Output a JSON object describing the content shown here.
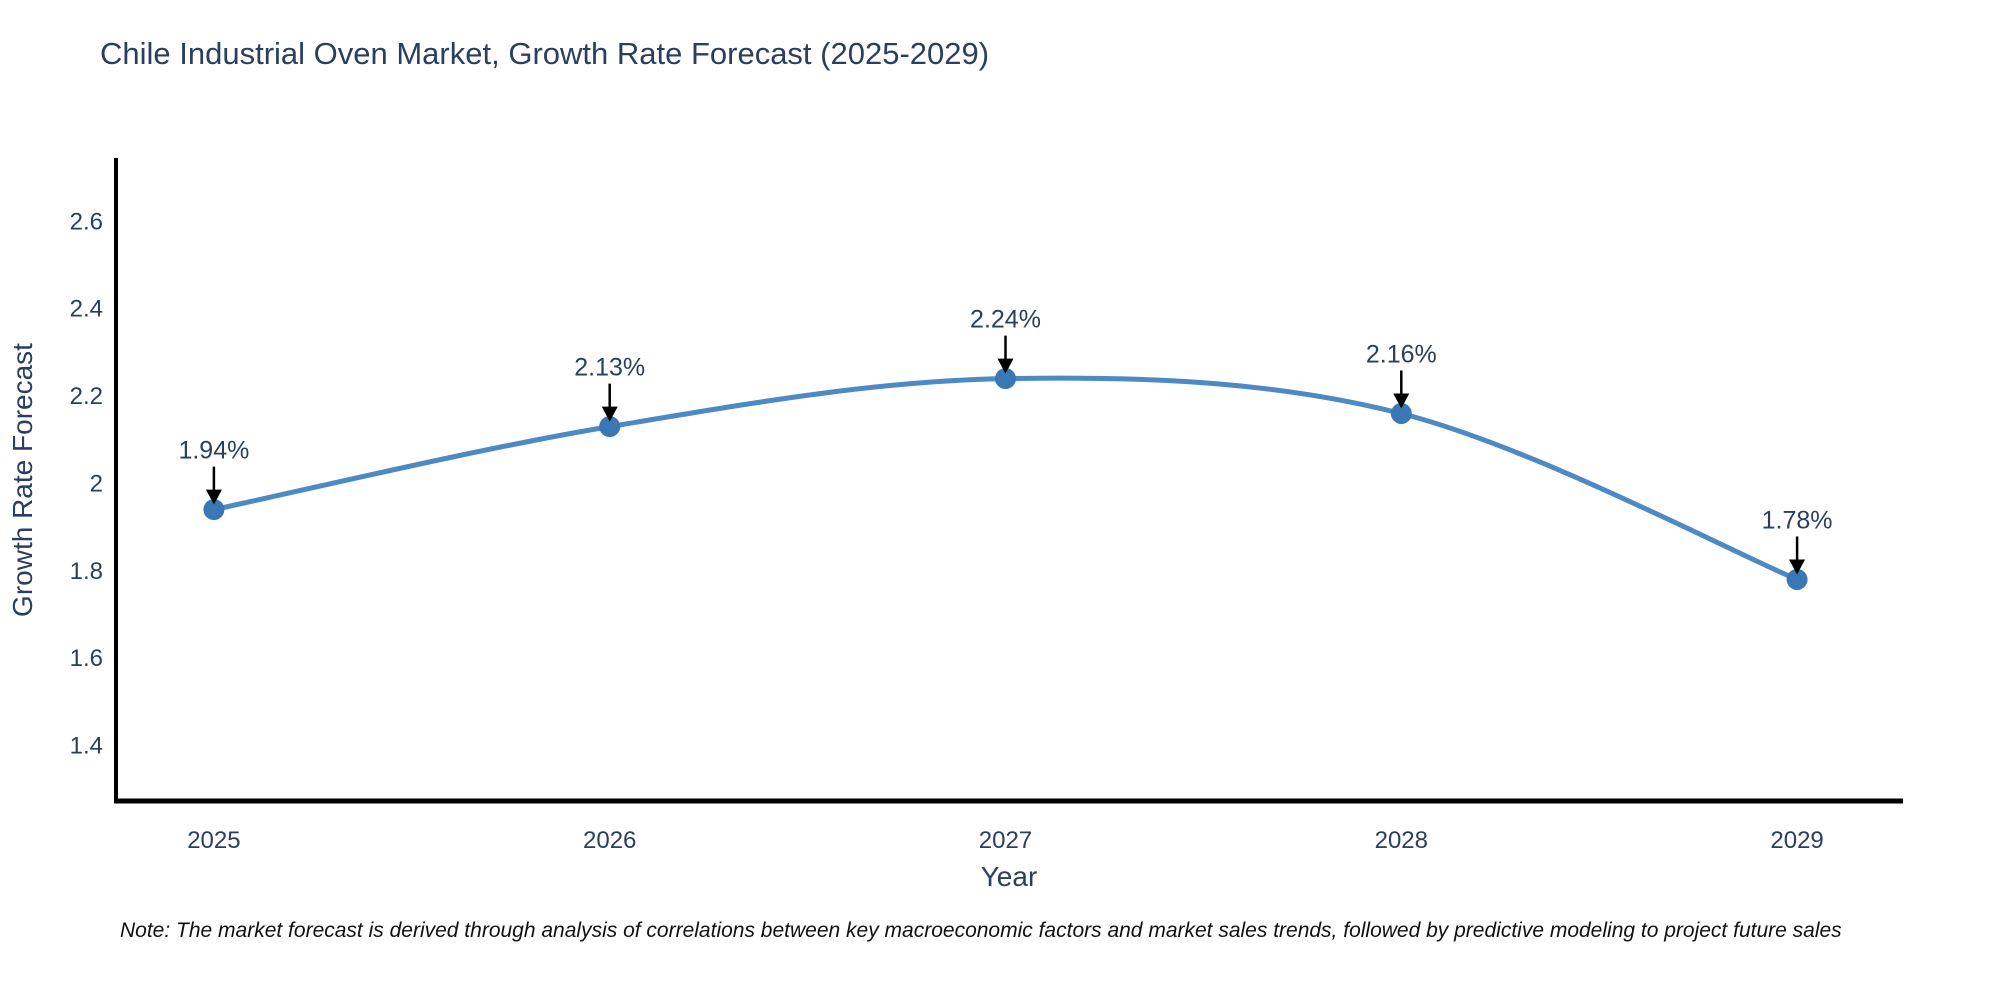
{
  "note": "Note: The market forecast is derived through analysis of correlations between key macroeconomic factors and market sales trends, followed by predictive modeling to project future sales",
  "chart_data": {
    "type": "line",
    "title": "Chile Industrial Oven Market, Growth Rate Forecast (2025-2029)",
    "xlabel": "Year",
    "ylabel": "Growth Rate Forecast",
    "x": [
      2025,
      2026,
      2027,
      2028,
      2029
    ],
    "series": [
      {
        "name": "Growth Rate Forecast",
        "values": [
          1.94,
          2.13,
          2.24,
          2.16,
          1.78
        ]
      }
    ],
    "point_labels": [
      "1.94%",
      "2.13%",
      "2.24%",
      "2.16%",
      "1.78%"
    ],
    "x_tick_labels": [
      "2025",
      "2026",
      "2027",
      "2028",
      "2029"
    ],
    "y_ticks": [
      1.4,
      1.6,
      1.8,
      2,
      2.2,
      2.4,
      2.6
    ],
    "y_tick_labels": [
      "1.4",
      "1.6",
      "1.8",
      "2",
      "2.2",
      "2.4",
      "2.6"
    ],
    "xlim": [
      2024.75,
      2029.25
    ],
    "ylim": [
      1.273,
      2.745
    ],
    "grid": false,
    "legend": "none",
    "line_shape": "spline",
    "annotation_style": "down-arrow",
    "colors": {
      "line": "#4d89c2",
      "marker": "#3a78b5",
      "axis": "#000000",
      "text": "#2a3f5f",
      "arrow": "#000000",
      "note_text": "#111111",
      "background": "#ffffff"
    }
  }
}
